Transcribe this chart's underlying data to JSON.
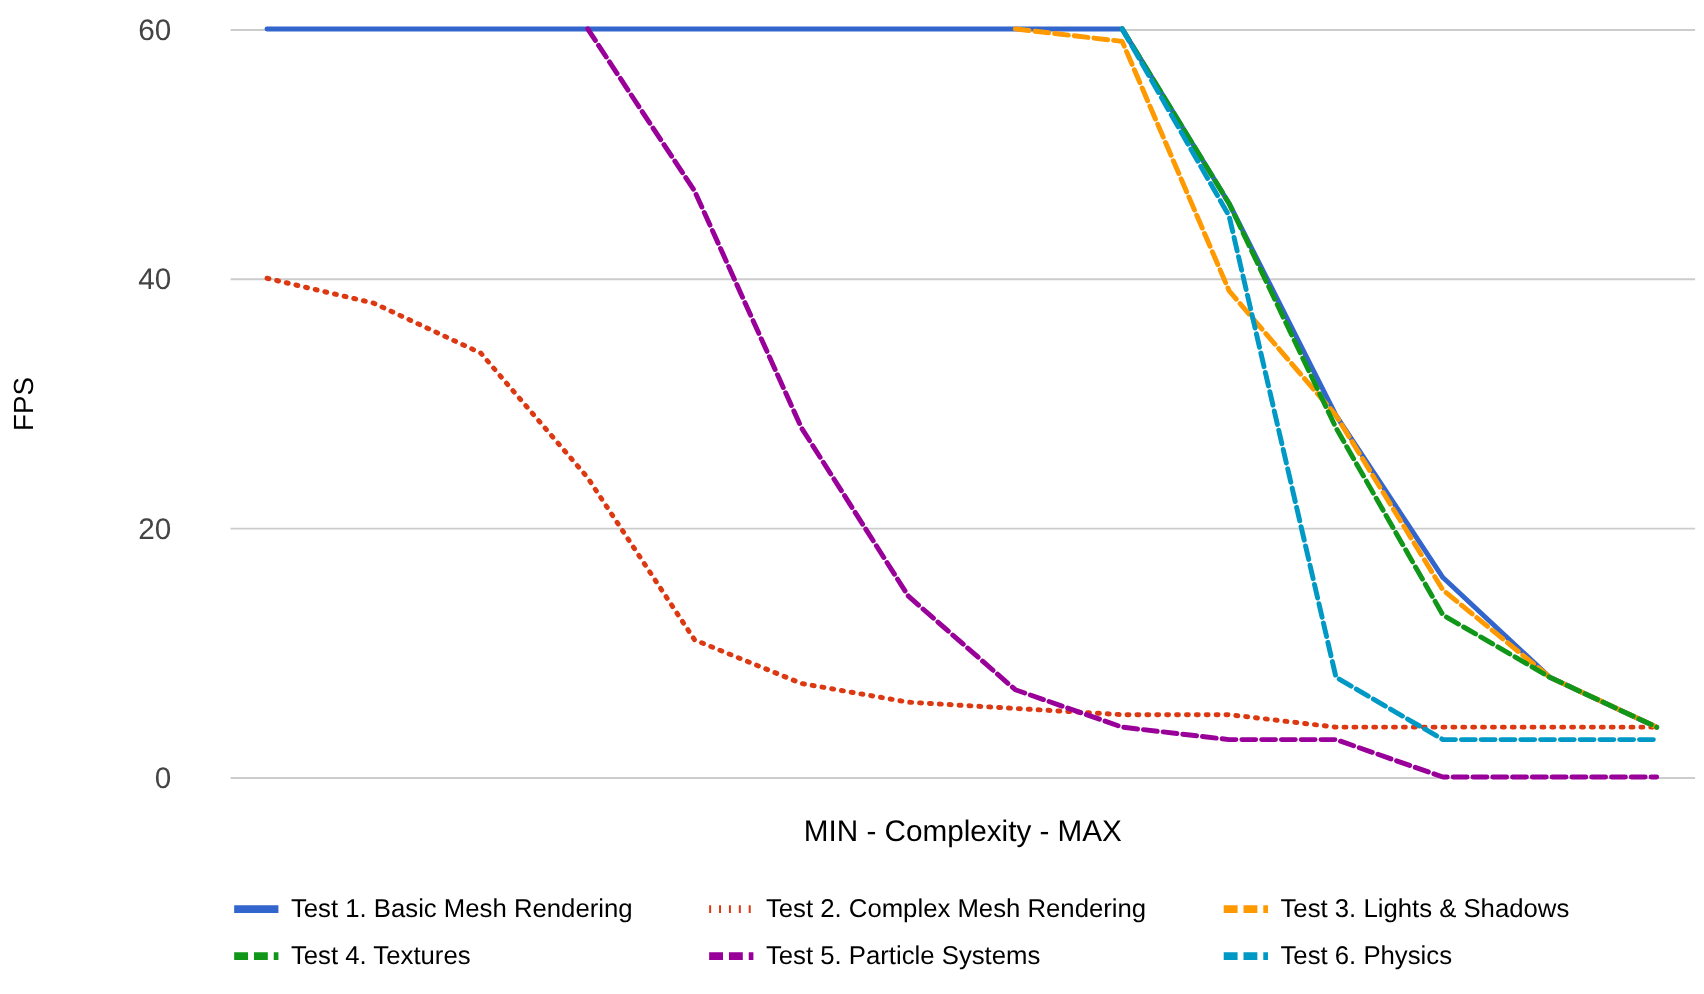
{
  "chart_data": {
    "type": "line",
    "xlabel": "MIN - Complexity - MAX",
    "ylabel": "FPS",
    "categories": [
      null,
      null,
      null,
      null,
      null,
      null,
      null,
      null,
      null,
      null,
      null,
      null,
      null,
      null
    ],
    "ylim": [
      0,
      60
    ],
    "yticks": [
      0,
      20,
      40,
      60
    ],
    "grid": "y",
    "legend": "bottom",
    "tick_labels": "y",
    "marker": "none",
    "series": [
      {
        "name": "Test 1. Basic Mesh Rendering",
        "color": "#3366cc",
        "line_style": "solid",
        "values": [
          60,
          60,
          60,
          60,
          60,
          60,
          60,
          60,
          60,
          46,
          29,
          16,
          8,
          4
        ]
      },
      {
        "name": "Test 2. Complex Mesh Rendering",
        "color": "#dc3912",
        "line_style": "dotted",
        "values": [
          40,
          38,
          34,
          24,
          11,
          7.5,
          6,
          5.5,
          5,
          5,
          4,
          4,
          4,
          4
        ]
      },
      {
        "name": "Test 3. Lights & Shadows",
        "color": "#ff9900",
        "line_style": "dashed",
        "values": [
          null,
          null,
          null,
          null,
          null,
          null,
          null,
          60,
          59,
          39,
          29,
          15,
          8,
          4
        ]
      },
      {
        "name": "Test 4. Textures",
        "color": "#109618",
        "line_style": "dashed",
        "values": [
          null,
          null,
          null,
          null,
          null,
          null,
          null,
          null,
          60,
          46,
          28,
          13,
          8,
          4
        ]
      },
      {
        "name": "Test 5. Particle Systems",
        "color": "#990099",
        "line_style": "dashed",
        "values": [
          null,
          null,
          null,
          60,
          47,
          28,
          14.5,
          7,
          4,
          3,
          3,
          0,
          0,
          0
        ]
      },
      {
        "name": "Test 6. Physics",
        "color": "#0099c6",
        "line_style": "dashed",
        "values": [
          null,
          null,
          null,
          null,
          null,
          null,
          null,
          null,
          60,
          45,
          8,
          3,
          3,
          3
        ]
      }
    ]
  }
}
